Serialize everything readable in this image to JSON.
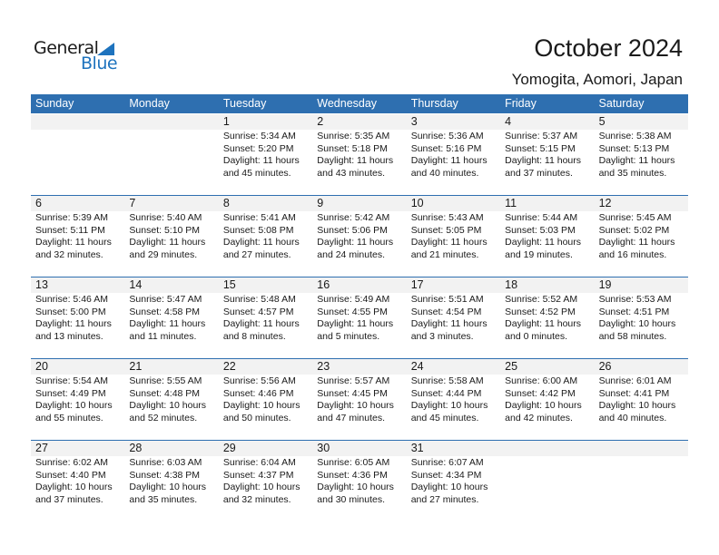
{
  "logo": {
    "general": "General",
    "blue": "Blue"
  },
  "title": "October 2024",
  "location": "Yomogita, Aomori, Japan",
  "colors": {
    "header": "#2e6fb0",
    "band": "#f2f2f2",
    "logo_blue": "#1e73be"
  },
  "weekdays": [
    "Sunday",
    "Monday",
    "Tuesday",
    "Wednesday",
    "Thursday",
    "Friday",
    "Saturday"
  ],
  "weeks": [
    [
      null,
      null,
      {
        "day": "1",
        "sunrise": "Sunrise: 5:34 AM",
        "sunset": "Sunset: 5:20 PM",
        "daylight": "Daylight: 11 hours",
        "minutes": "and 45 minutes."
      },
      {
        "day": "2",
        "sunrise": "Sunrise: 5:35 AM",
        "sunset": "Sunset: 5:18 PM",
        "daylight": "Daylight: 11 hours",
        "minutes": "and 43 minutes."
      },
      {
        "day": "3",
        "sunrise": "Sunrise: 5:36 AM",
        "sunset": "Sunset: 5:16 PM",
        "daylight": "Daylight: 11 hours",
        "minutes": "and 40 minutes."
      },
      {
        "day": "4",
        "sunrise": "Sunrise: 5:37 AM",
        "sunset": "Sunset: 5:15 PM",
        "daylight": "Daylight: 11 hours",
        "minutes": "and 37 minutes."
      },
      {
        "day": "5",
        "sunrise": "Sunrise: 5:38 AM",
        "sunset": "Sunset: 5:13 PM",
        "daylight": "Daylight: 11 hours",
        "minutes": "and 35 minutes."
      }
    ],
    [
      {
        "day": "6",
        "sunrise": "Sunrise: 5:39 AM",
        "sunset": "Sunset: 5:11 PM",
        "daylight": "Daylight: 11 hours",
        "minutes": "and 32 minutes."
      },
      {
        "day": "7",
        "sunrise": "Sunrise: 5:40 AM",
        "sunset": "Sunset: 5:10 PM",
        "daylight": "Daylight: 11 hours",
        "minutes": "and 29 minutes."
      },
      {
        "day": "8",
        "sunrise": "Sunrise: 5:41 AM",
        "sunset": "Sunset: 5:08 PM",
        "daylight": "Daylight: 11 hours",
        "minutes": "and 27 minutes."
      },
      {
        "day": "9",
        "sunrise": "Sunrise: 5:42 AM",
        "sunset": "Sunset: 5:06 PM",
        "daylight": "Daylight: 11 hours",
        "minutes": "and 24 minutes."
      },
      {
        "day": "10",
        "sunrise": "Sunrise: 5:43 AM",
        "sunset": "Sunset: 5:05 PM",
        "daylight": "Daylight: 11 hours",
        "minutes": "and 21 minutes."
      },
      {
        "day": "11",
        "sunrise": "Sunrise: 5:44 AM",
        "sunset": "Sunset: 5:03 PM",
        "daylight": "Daylight: 11 hours",
        "minutes": "and 19 minutes."
      },
      {
        "day": "12",
        "sunrise": "Sunrise: 5:45 AM",
        "sunset": "Sunset: 5:02 PM",
        "daylight": "Daylight: 11 hours",
        "minutes": "and 16 minutes."
      }
    ],
    [
      {
        "day": "13",
        "sunrise": "Sunrise: 5:46 AM",
        "sunset": "Sunset: 5:00 PM",
        "daylight": "Daylight: 11 hours",
        "minutes": "and 13 minutes."
      },
      {
        "day": "14",
        "sunrise": "Sunrise: 5:47 AM",
        "sunset": "Sunset: 4:58 PM",
        "daylight": "Daylight: 11 hours",
        "minutes": "and 11 minutes."
      },
      {
        "day": "15",
        "sunrise": "Sunrise: 5:48 AM",
        "sunset": "Sunset: 4:57 PM",
        "daylight": "Daylight: 11 hours",
        "minutes": "and 8 minutes."
      },
      {
        "day": "16",
        "sunrise": "Sunrise: 5:49 AM",
        "sunset": "Sunset: 4:55 PM",
        "daylight": "Daylight: 11 hours",
        "minutes": "and 5 minutes."
      },
      {
        "day": "17",
        "sunrise": "Sunrise: 5:51 AM",
        "sunset": "Sunset: 4:54 PM",
        "daylight": "Daylight: 11 hours",
        "minutes": "and 3 minutes."
      },
      {
        "day": "18",
        "sunrise": "Sunrise: 5:52 AM",
        "sunset": "Sunset: 4:52 PM",
        "daylight": "Daylight: 11 hours",
        "minutes": "and 0 minutes."
      },
      {
        "day": "19",
        "sunrise": "Sunrise: 5:53 AM",
        "sunset": "Sunset: 4:51 PM",
        "daylight": "Daylight: 10 hours",
        "minutes": "and 58 minutes."
      }
    ],
    [
      {
        "day": "20",
        "sunrise": "Sunrise: 5:54 AM",
        "sunset": "Sunset: 4:49 PM",
        "daylight": "Daylight: 10 hours",
        "minutes": "and 55 minutes."
      },
      {
        "day": "21",
        "sunrise": "Sunrise: 5:55 AM",
        "sunset": "Sunset: 4:48 PM",
        "daylight": "Daylight: 10 hours",
        "minutes": "and 52 minutes."
      },
      {
        "day": "22",
        "sunrise": "Sunrise: 5:56 AM",
        "sunset": "Sunset: 4:46 PM",
        "daylight": "Daylight: 10 hours",
        "minutes": "and 50 minutes."
      },
      {
        "day": "23",
        "sunrise": "Sunrise: 5:57 AM",
        "sunset": "Sunset: 4:45 PM",
        "daylight": "Daylight: 10 hours",
        "minutes": "and 47 minutes."
      },
      {
        "day": "24",
        "sunrise": "Sunrise: 5:58 AM",
        "sunset": "Sunset: 4:44 PM",
        "daylight": "Daylight: 10 hours",
        "minutes": "and 45 minutes."
      },
      {
        "day": "25",
        "sunrise": "Sunrise: 6:00 AM",
        "sunset": "Sunset: 4:42 PM",
        "daylight": "Daylight: 10 hours",
        "minutes": "and 42 minutes."
      },
      {
        "day": "26",
        "sunrise": "Sunrise: 6:01 AM",
        "sunset": "Sunset: 4:41 PM",
        "daylight": "Daylight: 10 hours",
        "minutes": "and 40 minutes."
      }
    ],
    [
      {
        "day": "27",
        "sunrise": "Sunrise: 6:02 AM",
        "sunset": "Sunset: 4:40 PM",
        "daylight": "Daylight: 10 hours",
        "minutes": "and 37 minutes."
      },
      {
        "day": "28",
        "sunrise": "Sunrise: 6:03 AM",
        "sunset": "Sunset: 4:38 PM",
        "daylight": "Daylight: 10 hours",
        "minutes": "and 35 minutes."
      },
      {
        "day": "29",
        "sunrise": "Sunrise: 6:04 AM",
        "sunset": "Sunset: 4:37 PM",
        "daylight": "Daylight: 10 hours",
        "minutes": "and 32 minutes."
      },
      {
        "day": "30",
        "sunrise": "Sunrise: 6:05 AM",
        "sunset": "Sunset: 4:36 PM",
        "daylight": "Daylight: 10 hours",
        "minutes": "and 30 minutes."
      },
      {
        "day": "31",
        "sunrise": "Sunrise: 6:07 AM",
        "sunset": "Sunset: 4:34 PM",
        "daylight": "Daylight: 10 hours",
        "minutes": "and 27 minutes."
      },
      null,
      null
    ]
  ]
}
